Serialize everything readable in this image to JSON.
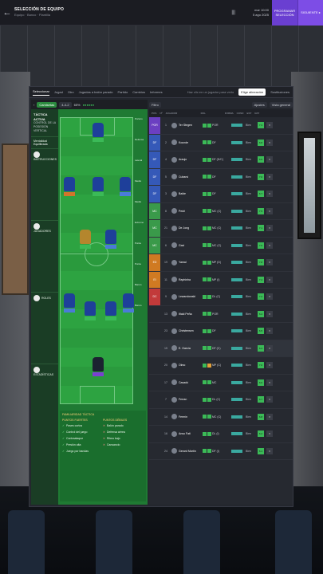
{
  "header": {
    "title": "SELECCIÓN DE EQUIPO",
    "subtitle": "Equipo · Banco · Plantilla",
    "date_line1": "mar 10:00",
    "date_line2": "5 ago 2025",
    "menu_glyph": "|||",
    "save_label": "PROGRAMAR SELECCIÓN",
    "continue_label": "SIGUIENTE ▸"
  },
  "tabs": [
    {
      "label": "Seleccionar",
      "active": true
    },
    {
      "label": "Jugad",
      "active": false
    },
    {
      "label": "Otro",
      "active": false
    },
    {
      "label": "Jugadas a balón parado",
      "active": false
    },
    {
      "label": "Partido",
      "active": false
    },
    {
      "label": "Cambios",
      "active": false
    },
    {
      "label": "Informes",
      "active": false
    }
  ],
  "tabs_right": {
    "hint": "Haz clic en un jugador para verlo",
    "primary": "Elige alineación",
    "secondary": "Sustituciones"
  },
  "tactic_toolbar": {
    "back": "‹",
    "mode": "Camisetas",
    "formation": "4-4-2",
    "stat": "65%",
    "status": "●●●●●●"
  },
  "tactic_panel": {
    "heading": "TÁCTICA ACTIVA",
    "style_lines": "CONTROL DE LA POSESIÓN VERTICAL",
    "mentality_label": "Mentalidad",
    "mentality_value": "Equilibrada",
    "section1": "INSTRUCCIONES",
    "section2": "JUGADORES",
    "section3": "ROLES",
    "section4": "ESTADÍSTICAS"
  },
  "pitch_labels": [
    "Portero",
    "Defensa",
    "Lateral",
    "Medio",
    "Medio",
    "Extremo",
    "Punta",
    "Punta",
    "Banco",
    "Banco"
  ],
  "tactic_bottom": {
    "familiarity_title": "FAMILIARIDAD TÁCTICA",
    "strengths_title": "PUNTOS FUERTES",
    "weaknesses_title": "PUNTOS DÉBILES",
    "strengths": [
      "Pases cortos",
      "Control del juego",
      "Contraataque",
      "Presión alta",
      "Juego por bandas"
    ],
    "weaknesses": [
      "Balón parado",
      "Defensa aérea",
      "Ritmo bajo",
      "Cansancio"
    ]
  },
  "squad_toolbar": {
    "left": "Filtro",
    "mid": "Ajustes",
    "right": "Vista general"
  },
  "squad_headers": [
    "POS",
    "Nº",
    "JUGADOR",
    "",
    "ROL",
    "FORMA",
    "COND",
    "EST",
    "RAT"
  ],
  "squad_rows": [
    {
      "pos": "POR",
      "num": "1",
      "name": "Ter Stegen",
      "code": "POR",
      "state": "Bien",
      "rating": "7.3",
      "color": "#6b3fc1"
    },
    {
      "pos": "DF",
      "num": "2",
      "name": "Kounde",
      "code": "DF",
      "state": "Bien",
      "rating": "6.8",
      "color": "#3559b8"
    },
    {
      "pos": "DF",
      "num": "4",
      "name": "Araujo",
      "code": "DF (D/C)",
      "state": "Bien",
      "rating": "6.9",
      "color": "#3559b8"
    },
    {
      "pos": "DF",
      "num": "5",
      "name": "Cubarsí",
      "code": "DF",
      "state": "Bien",
      "rating": "7.0",
      "color": "#3559b8"
    },
    {
      "pos": "DF",
      "num": "3",
      "name": "Balde",
      "code": "DF",
      "state": "Bien",
      "rating": "6.7",
      "color": "#3559b8"
    },
    {
      "pos": "MC",
      "num": "8",
      "name": "Pedri",
      "code": "MC (C)",
      "state": "Bien",
      "rating": "7.5",
      "color": "#3a9a4a"
    },
    {
      "pos": "MC",
      "num": "21",
      "name": "De Jong",
      "code": "MC (C)",
      "state": "Bien",
      "rating": "7.1",
      "color": "#3a9a4a"
    },
    {
      "pos": "MC",
      "num": "6",
      "name": "Gavi",
      "code": "MC (C)",
      "state": "Bien",
      "rating": "7.0",
      "color": "#3a9a4a"
    },
    {
      "pos": "ED",
      "num": "19",
      "name": "Yamal",
      "code": "MP (D)",
      "state": "Bien",
      "rating": "7.8",
      "color": "#d07a22"
    },
    {
      "pos": "EI",
      "num": "11",
      "name": "Raphinha",
      "code": "MP (I)",
      "state": "Bien",
      "rating": "7.4",
      "color": "#d07a22"
    },
    {
      "pos": "DC",
      "num": "9",
      "name": "Lewandowski",
      "code": "DL (C)",
      "state": "Bien",
      "rating": "7.2",
      "color": "#c23a3a"
    },
    {
      "pos": "",
      "num": "13",
      "name": "Iñaki Peña",
      "code": "POR",
      "state": "Bien",
      "rating": "6.4",
      "color": ""
    },
    {
      "pos": "",
      "num": "23",
      "name": "Christensen",
      "code": "DF",
      "state": "Bien",
      "rating": "6.5",
      "color": ""
    },
    {
      "pos": "",
      "num": "15",
      "name": "E. García",
      "code": "DF (C)",
      "state": "Bien",
      "rating": "6.3",
      "color": ""
    },
    {
      "pos": "",
      "num": "20",
      "name": "Olmo",
      "code": "MP (C)",
      "state": "Bien",
      "rating": "7.0",
      "color": ""
    },
    {
      "pos": "",
      "num": "17",
      "name": "Casadó",
      "code": "MC",
      "state": "Bien",
      "rating": "6.6",
      "color": ""
    },
    {
      "pos": "",
      "num": "7",
      "name": "Ferran",
      "code": "DL (C)",
      "state": "Bien",
      "rating": "6.7",
      "color": ""
    },
    {
      "pos": "",
      "num": "14",
      "name": "Fermín",
      "code": "MC (C)",
      "state": "Bien",
      "rating": "6.8",
      "color": ""
    },
    {
      "pos": "",
      "num": "16",
      "name": "Ansu Fati",
      "code": "DL (I)",
      "state": "Bien",
      "rating": "6.2",
      "color": ""
    },
    {
      "pos": "",
      "num": "24",
      "name": "Gerard Martín",
      "code": "DF (I)",
      "state": "Bien",
      "rating": "6.1",
      "color": ""
    }
  ]
}
